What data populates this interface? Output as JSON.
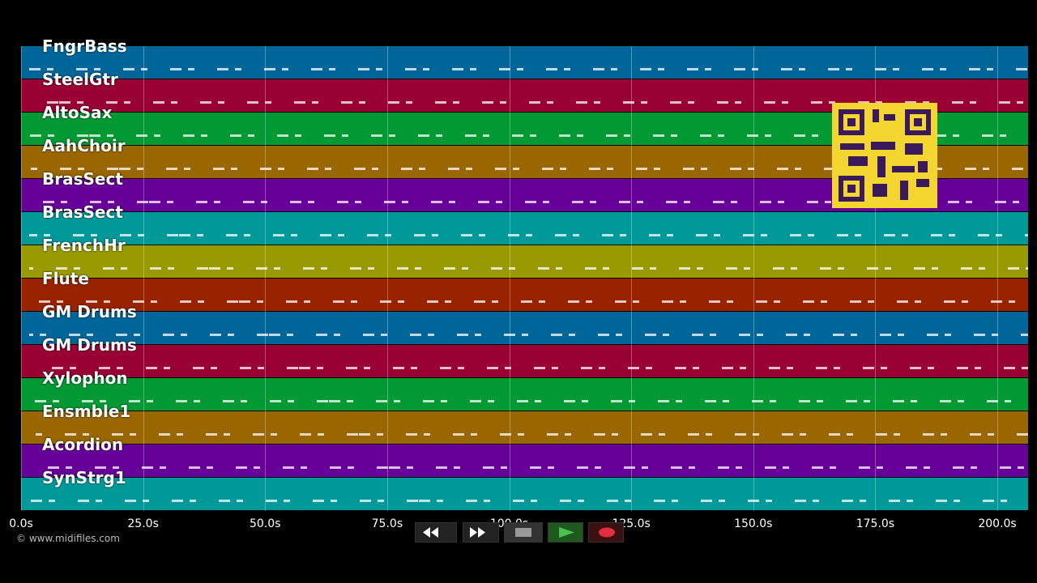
{
  "tracks": [
    {
      "name": "FngrBass",
      "color": "#00669a"
    },
    {
      "name": "SteelGtr",
      "color": "#990033"
    },
    {
      "name": "AltoSax",
      "color": "#009933"
    },
    {
      "name": "AahChoir",
      "color": "#996600"
    },
    {
      "name": "BrasSect",
      "color": "#660099"
    },
    {
      "name": "BrasSect",
      "color": "#009999"
    },
    {
      "name": "FrenchHr",
      "color": "#999900"
    },
    {
      "name": "Flute",
      "color": "#992200"
    },
    {
      "name": "GM Drums",
      "color": "#00669a"
    },
    {
      "name": "GM Drums",
      "color": "#990033"
    },
    {
      "name": "Xylophon",
      "color": "#009933"
    },
    {
      "name": "Ensmble1",
      "color": "#996600"
    },
    {
      "name": "Acordion",
      "color": "#660099"
    },
    {
      "name": "SynStrg1",
      "color": "#009999"
    }
  ],
  "time_axis": {
    "xlim": [
      0,
      206.3
    ],
    "ticks": [
      {
        "value": 0,
        "label": "0.0s"
      },
      {
        "value": 25,
        "label": "25.0s"
      },
      {
        "value": 50,
        "label": "50.0s"
      },
      {
        "value": 75,
        "label": "75.0s"
      },
      {
        "value": 100,
        "label": "100.0s"
      },
      {
        "value": 125,
        "label": "125.0s"
      },
      {
        "value": 150,
        "label": "150.0s"
      },
      {
        "value": 175,
        "label": "175.0s"
      },
      {
        "value": 200,
        "label": "200.0s"
      }
    ]
  },
  "footer": "© www.midifiles.com"
}
